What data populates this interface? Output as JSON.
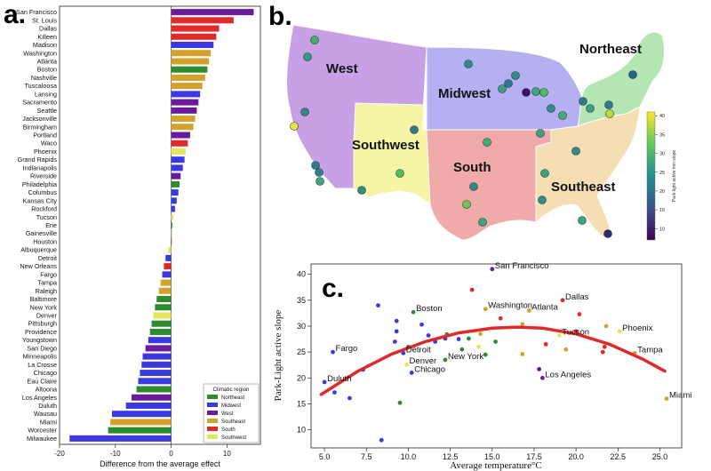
{
  "panel_labels": {
    "a": "a.",
    "b": "b.",
    "c": "c."
  },
  "colors": {
    "Northeast": "#2e8b2e",
    "Midwest": "#3a3ae0",
    "West": "#6a1b9a",
    "Southeast": "#d4a12a",
    "South": "#e02a2a",
    "Southwest": "#e6e65a"
  },
  "chart_data": [
    {
      "type": "bar",
      "orientation": "horizontal",
      "xlabel": "Difference from the average effect",
      "xlim": [
        -20,
        16
      ],
      "xticks": [
        -20,
        -10,
        0,
        10
      ],
      "legend_title": "Climatic region",
      "legend_position": "bottom-right",
      "legend": [
        "Northeast",
        "Midwest",
        "West",
        "Southeast",
        "South",
        "Southwest"
      ],
      "categories": [
        "San Francisco",
        "St. Louis",
        "Dallas",
        "Killeen",
        "Madison",
        "Washington",
        "Atlanta",
        "Boston",
        "Nashville",
        "Tuscaloosa",
        "Lansing",
        "Sacramento",
        "Seattle",
        "Jacksonville",
        "Birmingham",
        "Portland",
        "Waco",
        "Phoenix",
        "Grand Rapids",
        "Indianapolis",
        "Riverside",
        "Philadelphia",
        "Columbus",
        "Kansas City",
        "Rockford",
        "Tucson",
        "Erie",
        "Gainesville",
        "Houston",
        "Albuquerque",
        "Detroit",
        "New Orleans",
        "Fargo",
        "Tampa",
        "Raleigh",
        "Baltimore",
        "New York",
        "Denver",
        "Pittsburgh",
        "Providence",
        "Youngstown",
        "San Diego",
        "Minneapolis",
        "La Crosse",
        "Chicago",
        "Eau Claire",
        "Altoona",
        "Los Angeles",
        "Duluth",
        "Wausau",
        "Miami",
        "Worcester",
        "Milwaukee"
      ],
      "values": [
        14.8,
        11.2,
        8.6,
        8.1,
        7.6,
        7.1,
        6.8,
        6.5,
        6.1,
        5.6,
        5.2,
        4.9,
        4.6,
        4.3,
        4.0,
        3.4,
        3.0,
        2.6,
        2.4,
        2.1,
        1.7,
        1.5,
        1.3,
        1.0,
        0.7,
        0.4,
        0.2,
        0.1,
        0.0,
        -0.5,
        -1.0,
        -1.3,
        -1.6,
        -1.9,
        -2.2,
        -2.6,
        -2.9,
        -3.2,
        -3.5,
        -3.8,
        -4.1,
        -4.6,
        -5.1,
        -5.3,
        -5.6,
        -5.9,
        -6.2,
        -7.1,
        -8.1,
        -10.6,
        -10.9,
        -11.3,
        -18.2
      ],
      "regions": [
        "West",
        "South",
        "South",
        "South",
        "Midwest",
        "Southeast",
        "Southeast",
        "Northeast",
        "Southeast",
        "Southeast",
        "Midwest",
        "West",
        "West",
        "Southeast",
        "Southeast",
        "West",
        "South",
        "Southwest",
        "Midwest",
        "Midwest",
        "West",
        "Northeast",
        "Midwest",
        "Midwest",
        "Midwest",
        "Southwest",
        "Northeast",
        "Southeast",
        "South",
        "Southwest",
        "Midwest",
        "South",
        "Midwest",
        "Southeast",
        "Southeast",
        "Northeast",
        "Northeast",
        "Southwest",
        "Northeast",
        "Northeast",
        "Midwest",
        "West",
        "Midwest",
        "Midwest",
        "Midwest",
        "Midwest",
        "Northeast",
        "West",
        "Midwest",
        "Midwest",
        "Southeast",
        "Northeast",
        "Midwest"
      ]
    },
    {
      "type": "map",
      "regions": [
        "West",
        "Midwest",
        "Northeast",
        "Southwest",
        "South",
        "Southeast"
      ],
      "colorbar_label": "Park-light active min slope",
      "colorbar_ticks": [
        10,
        15,
        20,
        25,
        30,
        35,
        40
      ]
    },
    {
      "type": "scatter",
      "xlabel": "Average temperature°C",
      "ylabel": "Park-Light active slope",
      "xlim": [
        4.2,
        26.3
      ],
      "ylim": [
        6.5,
        42
      ],
      "xticks": [
        5.0,
        7.5,
        10.0,
        12.5,
        15.0,
        17.5,
        20.0,
        22.5,
        25.0
      ],
      "yticks": [
        10,
        15,
        20,
        25,
        30,
        35,
        40
      ],
      "labeled_points": [
        {
          "label": "San Francisco",
          "x": 15.0,
          "y": 41.0,
          "region": "West"
        },
        {
          "label": "Dallas",
          "x": 19.2,
          "y": 35.0,
          "region": "South"
        },
        {
          "label": "Boston",
          "x": 10.3,
          "y": 32.7,
          "region": "Northeast"
        },
        {
          "label": "Washington",
          "x": 14.6,
          "y": 33.3,
          "region": "Southeast"
        },
        {
          "label": "Atlanta",
          "x": 17.2,
          "y": 33.0,
          "region": "Southeast"
        },
        {
          "label": "Phoenix",
          "x": 22.6,
          "y": 29.0,
          "region": "Southwest"
        },
        {
          "label": "Tucson",
          "x": 19.0,
          "y": 28.2,
          "region": "Southwest"
        },
        {
          "label": "Tampa",
          "x": 23.5,
          "y": 24.8,
          "region": "Southeast"
        },
        {
          "label": "Fargo",
          "x": 5.5,
          "y": 25.0,
          "region": "Midwest"
        },
        {
          "label": "Detroit",
          "x": 9.7,
          "y": 24.8,
          "region": "Midwest"
        },
        {
          "label": "Denver",
          "x": 9.9,
          "y": 22.6,
          "region": "Southwest"
        },
        {
          "label": "New York",
          "x": 12.2,
          "y": 23.5,
          "region": "Northeast"
        },
        {
          "label": "Chicago",
          "x": 10.2,
          "y": 21.0,
          "region": "Midwest"
        },
        {
          "label": "Los Angeles",
          "x": 18.0,
          "y": 20.0,
          "region": "West"
        },
        {
          "label": "Duluth",
          "x": 5.0,
          "y": 19.2,
          "region": "Midwest"
        },
        {
          "label": "Miami",
          "x": 25.4,
          "y": 16.0,
          "region": "Southeast"
        }
      ],
      "other_points": [
        {
          "x": 5.6,
          "y": 17.2,
          "region": "Midwest"
        },
        {
          "x": 6.5,
          "y": 16.1,
          "region": "Midwest"
        },
        {
          "x": 7.3,
          "y": 21.6,
          "region": "Midwest"
        },
        {
          "x": 8.2,
          "y": 34.0,
          "region": "Midwest"
        },
        {
          "x": 8.4,
          "y": 8.0,
          "region": "Midwest"
        },
        {
          "x": 9.3,
          "y": 31.0,
          "region": "Midwest"
        },
        {
          "x": 9.3,
          "y": 29.0,
          "region": "Midwest"
        },
        {
          "x": 9.2,
          "y": 27.0,
          "region": "Midwest"
        },
        {
          "x": 9.5,
          "y": 15.2,
          "region": "Northeast"
        },
        {
          "x": 10.0,
          "y": 26.0,
          "region": "Northeast"
        },
        {
          "x": 10.8,
          "y": 30.3,
          "region": "Midwest"
        },
        {
          "x": 11.2,
          "y": 28.2,
          "region": "Midwest"
        },
        {
          "x": 11.6,
          "y": 27.0,
          "region": "Midwest"
        },
        {
          "x": 12.3,
          "y": 28.4,
          "region": "Northeast"
        },
        {
          "x": 12.2,
          "y": 27.6,
          "region": "Midwest"
        },
        {
          "x": 13.0,
          "y": 27.5,
          "region": "Midwest"
        },
        {
          "x": 13.2,
          "y": 25.5,
          "region": "Northeast"
        },
        {
          "x": 13.6,
          "y": 27.6,
          "region": "Northeast"
        },
        {
          "x": 13.8,
          "y": 37.0,
          "region": "South"
        },
        {
          "x": 14.2,
          "y": 26.0,
          "region": "Southwest"
        },
        {
          "x": 14.6,
          "y": 24.5,
          "region": "Northeast"
        },
        {
          "x": 14.3,
          "y": 28.5,
          "region": "Southeast"
        },
        {
          "x": 15.2,
          "y": 27.0,
          "region": "Northeast"
        },
        {
          "x": 15.5,
          "y": 31.5,
          "region": "South"
        },
        {
          "x": 16.8,
          "y": 30.4,
          "region": "Southeast"
        },
        {
          "x": 16.8,
          "y": 24.6,
          "region": "Southeast"
        },
        {
          "x": 17.8,
          "y": 21.7,
          "region": "West"
        },
        {
          "x": 18.2,
          "y": 26.5,
          "region": "South"
        },
        {
          "x": 19.4,
          "y": 25.5,
          "region": "Southeast"
        },
        {
          "x": 20.2,
          "y": 32.3,
          "region": "South"
        },
        {
          "x": 21.6,
          "y": 25.0,
          "region": "South"
        },
        {
          "x": 21.8,
          "y": 30.0,
          "region": "Southeast"
        },
        {
          "x": 21.7,
          "y": 26.0,
          "region": "South"
        },
        {
          "x": 20.0,
          "y": 29.0,
          "region": "South"
        }
      ],
      "trend_line": {
        "x": [
          4.8,
          7,
          9,
          11,
          13,
          15,
          16.5,
          18,
          20,
          22,
          24,
          25.3
        ],
        "y": [
          16.8,
          21.3,
          24.6,
          27.0,
          28.7,
          29.6,
          29.8,
          29.6,
          28.5,
          26.5,
          23.6,
          21.3
        ]
      }
    }
  ]
}
